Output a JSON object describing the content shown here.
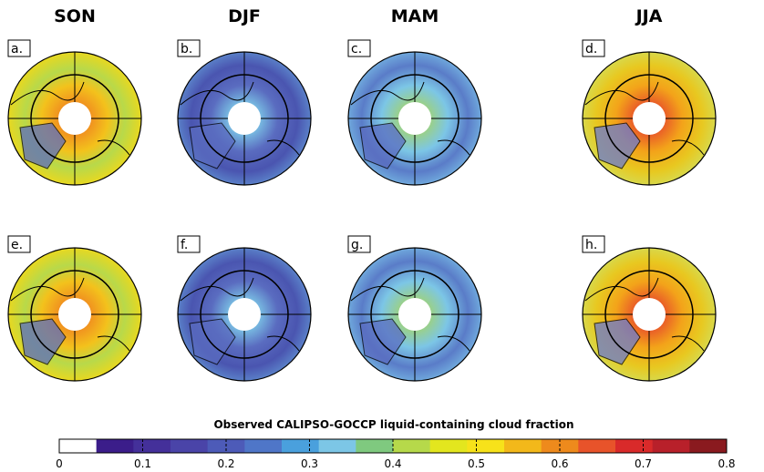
{
  "figure": {
    "columns": [
      "SON",
      "DJF",
      "MAM",
      "JJA"
    ],
    "panel_labels": [
      "a.",
      "b.",
      "c.",
      "d.",
      "e.",
      "f.",
      "g.",
      "h."
    ],
    "colorbar": {
      "label": "Observed CALIPSO-GOCCP liquid-containing cloud fraction",
      "lim": [
        0,
        0.8
      ],
      "ticks": [
        0,
        0.1,
        0.2,
        0.3,
        0.4,
        0.5,
        0.6,
        0.7,
        0.8
      ],
      "colors": [
        "#ffffff",
        "#3b1d8a",
        "#44309a",
        "#4a44a8",
        "#4d5bb8",
        "#4f76c8",
        "#4aa0dd",
        "#7cc6e6",
        "#7fc97f",
        "#b6d94a",
        "#e3e61e",
        "#f7e21a",
        "#f3b81a",
        "#ee8a1c",
        "#e8532a",
        "#d92a2a",
        "#b8202a",
        "#8a1a1f"
      ]
    }
  }
}
